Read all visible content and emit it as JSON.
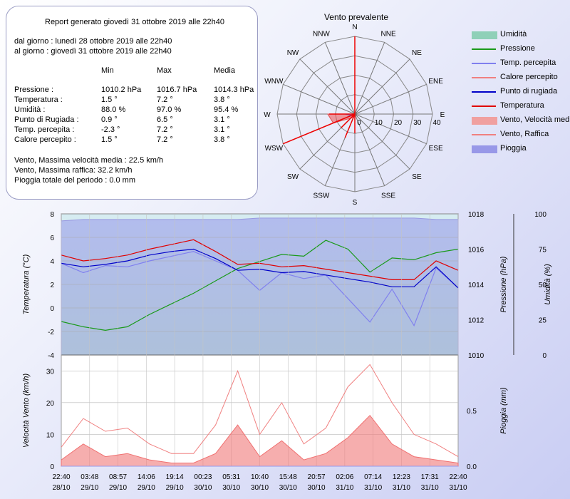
{
  "report": {
    "title": "Report generato giovedì 31 ottobre 2019 alle 22h40",
    "from": "dal giorno : lunedì 28 ottobre 2019 alle 22h40",
    "to": "al giorno : giovedì 31 ottobre 2019 alle 22h40",
    "headers": [
      "Min",
      "Max",
      "Media"
    ],
    "rows": [
      {
        "label": "Pressione :",
        "min": "1010.2 hPa",
        "max": "1016.7 hPa",
        "avg": "1014.3 hPa"
      },
      {
        "label": "Temperatura :",
        "min": "1.5 °",
        "max": "7.2 °",
        "avg": "3.8 °"
      },
      {
        "label": "Umidità :",
        "min": "88.0 %",
        "max": "97.0 %",
        "avg": "95.4 %"
      },
      {
        "label": "Punto di Rugiada :",
        "min": "0.9 °",
        "max": "6.5 °",
        "avg": "3.1 °"
      },
      {
        "label": "Temp. percepita :",
        "min": "-2.3 °",
        "max": "7.2 °",
        "avg": "3.1 °"
      },
      {
        "label": "Calore percepito :",
        "min": "1.5 °",
        "max": "7.2 °",
        "avg": "3.8 °"
      }
    ],
    "wind_avg": "Vento, Massima velocità media : 22.5 km/h",
    "wind_gust": "Vento, Massima raffica: 32.2 km/h",
    "rain": "Pioggia totale del periodo : 0.0 mm"
  },
  "windrose": {
    "title": "Vento prevalente",
    "directions": [
      "N",
      "NNE",
      "NE",
      "ENE",
      "E",
      "ESE",
      "SE",
      "SSE",
      "S",
      "SSW",
      "SW",
      "WSW",
      "W",
      "WNW",
      "NW",
      "NNW"
    ],
    "ring_labels": [
      "0",
      "10",
      "20",
      "30",
      "40"
    ],
    "max": 40,
    "avg_speed_by_dir": [
      0,
      0,
      0,
      0,
      0,
      0,
      0,
      0,
      0,
      0,
      0,
      2,
      5,
      0,
      0,
      0
    ],
    "gust_by_dir": [
      0,
      0,
      0,
      0,
      0,
      0,
      0,
      0,
      0,
      2,
      3,
      12,
      14,
      0,
      0,
      0
    ],
    "freq_by_dir": [
      28,
      0,
      0,
      0,
      0,
      0,
      0,
      0,
      3,
      4,
      3,
      20,
      4,
      0,
      0,
      0
    ]
  },
  "legend": [
    {
      "label": "Umidità",
      "kind": "area",
      "color": "#8fd0b8"
    },
    {
      "label": "Pressione",
      "kind": "line",
      "color": "#1a9a1a"
    },
    {
      "label": "Temp. percepita",
      "kind": "line",
      "color": "#8080ee"
    },
    {
      "label": "Calore percepito",
      "kind": "line",
      "color": "#f08080"
    },
    {
      "label": "Punto di rugiada",
      "kind": "line",
      "color": "#0000c8"
    },
    {
      "label": "Temperatura",
      "kind": "line",
      "color": "#e00000"
    },
    {
      "label": "Vento, Velocità media",
      "kind": "area",
      "color": "#f0a0a0"
    },
    {
      "label": "Vento, Raffica",
      "kind": "line",
      "color": "#f08080"
    },
    {
      "label": "Pioggia",
      "kind": "area",
      "color": "#9898e8"
    }
  ],
  "chart_data": [
    {
      "type": "line",
      "ylabel": "Temperatura (°C)",
      "ylabel_right1": "Pressione (hPa)",
      "ylabel_right2": "Umidità (%)",
      "ylim": [
        -4,
        8
      ],
      "yticks": [
        "8",
        "6",
        "4",
        "2",
        "0",
        "-2",
        "-4"
      ],
      "ylim_pressure": [
        1010,
        1018
      ],
      "pressure_ticks": [
        "1018",
        "1016",
        "1014",
        "1012",
        "1010"
      ],
      "ylim_humidity": [
        0,
        100
      ],
      "humidity_ticks": [
        "100",
        "75",
        "50",
        "25",
        "0"
      ],
      "x_hours": [
        0,
        4,
        8,
        12,
        16,
        20,
        24,
        28,
        32,
        36,
        40,
        44,
        48,
        52,
        56,
        60,
        64,
        68,
        72
      ],
      "series": [
        {
          "name": "Temperatura",
          "axis": "temp",
          "values": [
            4.5,
            4.0,
            4.2,
            4.5,
            5.0,
            5.4,
            5.8,
            4.8,
            3.7,
            3.8,
            3.5,
            3.6,
            3.3,
            3.0,
            2.7,
            2.4,
            2.4,
            4.0,
            3.2
          ]
        },
        {
          "name": "Punto di rugiada",
          "axis": "temp",
          "values": [
            3.8,
            3.5,
            3.7,
            4.0,
            4.5,
            4.8,
            5.0,
            4.2,
            3.2,
            3.3,
            3.0,
            3.1,
            2.8,
            2.5,
            2.2,
            1.8,
            1.8,
            3.5,
            1.7
          ]
        },
        {
          "name": "Temp. percepita",
          "axis": "temp",
          "values": [
            3.8,
            3.0,
            3.6,
            3.5,
            4.0,
            4.4,
            4.8,
            4.0,
            3.2,
            1.5,
            3.0,
            2.5,
            2.8,
            0.8,
            -1.2,
            1.6,
            -1.5,
            3.4,
            1.7
          ]
        },
        {
          "name": "Pressione",
          "axis": "pressure",
          "values": [
            1011.9,
            1011.6,
            1011.4,
            1011.6,
            1012.3,
            1012.9,
            1013.5,
            1014.2,
            1014.9,
            1015.3,
            1015.7,
            1015.6,
            1016.5,
            1016.0,
            1014.7,
            1015.5,
            1015.4,
            1015.8,
            1016.0
          ]
        },
        {
          "name": "Umidità",
          "axis": "humidity",
          "values": [
            95,
            96,
            96,
            96,
            96,
            96,
            96,
            96,
            96,
            97,
            97,
            97,
            97,
            97,
            97,
            97,
            97,
            96,
            96
          ]
        }
      ]
    },
    {
      "type": "area",
      "ylabel": "Velocità Vento (km/h)",
      "ylabel_right": "Pioggia (mm)",
      "ylim": [
        0,
        35
      ],
      "yticks": [
        "30",
        "20",
        "10",
        "0"
      ],
      "rain_ticks": [
        "0.5",
        "0.0"
      ],
      "x_hours": [
        0,
        4,
        8,
        12,
        16,
        20,
        24,
        28,
        32,
        36,
        40,
        44,
        48,
        52,
        56,
        60,
        64,
        68,
        72
      ],
      "series": [
        {
          "name": "Vento, Velocità media",
          "values": [
            2,
            7,
            3,
            4,
            2,
            1,
            1,
            4,
            13,
            3,
            8,
            2,
            4,
            9,
            16,
            7,
            3,
            2,
            1
          ]
        },
        {
          "name": "Vento, Raffica",
          "values": [
            6,
            15,
            11,
            12,
            7,
            4,
            4,
            13,
            30,
            10,
            20,
            7,
            12,
            25,
            32,
            20,
            10,
            7,
            3
          ]
        },
        {
          "name": "Pioggia",
          "values": [
            0,
            0,
            0,
            0,
            0,
            0,
            0,
            0,
            0,
            0,
            0,
            0,
            0,
            0,
            0,
            0,
            0,
            0,
            0
          ]
        }
      ],
      "x_tick_times": [
        "22:40",
        "03:48",
        "08:57",
        "14:06",
        "19:14",
        "00:23",
        "05:31",
        "10:40",
        "15:48",
        "20:57",
        "02:06",
        "07:14",
        "12:23",
        "17:31",
        "22:40"
      ],
      "x_tick_dates": [
        "28/10",
        "29/10",
        "29/10",
        "29/10",
        "29/10",
        "30/10",
        "30/10",
        "30/10",
        "30/10",
        "30/10",
        "31/10",
        "31/10",
        "31/10",
        "31/10",
        "31/10"
      ]
    }
  ]
}
